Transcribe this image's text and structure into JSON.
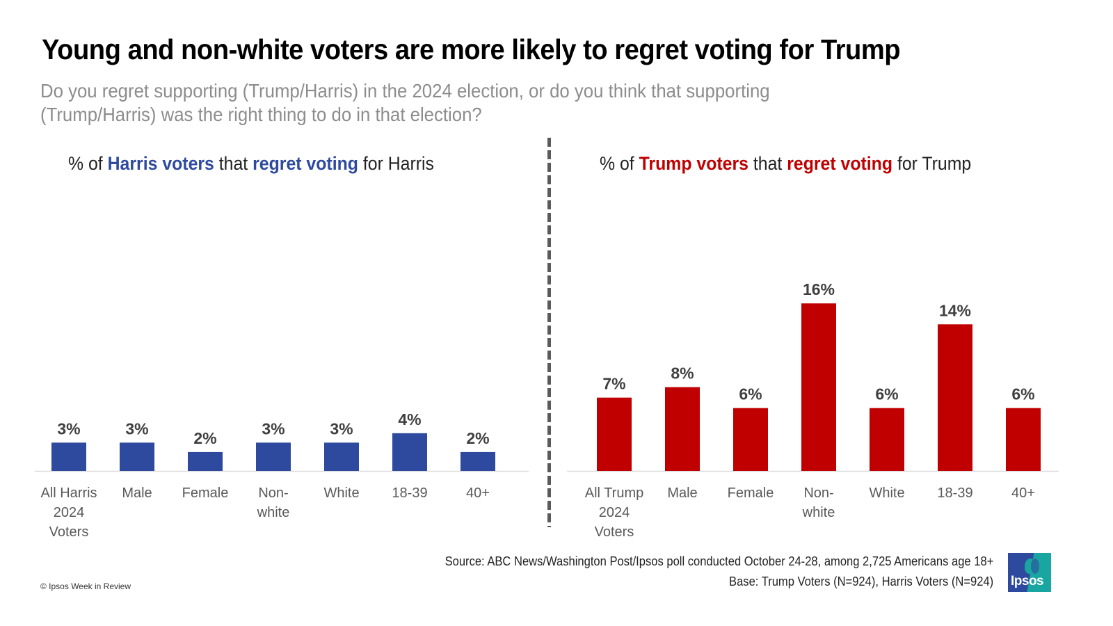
{
  "header": {
    "title": "Young and non-white voters are more likely to regret voting for Trump",
    "subtitle": "Do you regret supporting (Trump/Harris) in the 2024 election, or do  you think that supporting (Trump/Harris) was the right thing to do in that election?"
  },
  "panels": {
    "harris": {
      "prefix": "% of ",
      "group": "Harris voters",
      "middle": " that ",
      "emphasis": "regret voting",
      "suffix": " for Harris",
      "color": "#2e4a9e"
    },
    "trump": {
      "prefix": "% of ",
      "group": "Trump voters",
      "middle": " that ",
      "emphasis": "regret voting",
      "suffix": " for Trump",
      "color": "#c00000"
    }
  },
  "chart_data": [
    {
      "type": "bar",
      "title": "% of Harris voters that regret voting for Harris",
      "categories": [
        [
          "All Harris",
          "2024",
          "Voters"
        ],
        [
          "Male"
        ],
        [
          "Female"
        ],
        [
          "Non-",
          "white"
        ],
        [
          "White"
        ],
        [
          "18-39"
        ],
        [
          "40+"
        ]
      ],
      "values": [
        3,
        3,
        2,
        3,
        3,
        4,
        2
      ],
      "labels": [
        "3%",
        "3%",
        "2%",
        "3%",
        "3%",
        "4%",
        "2%"
      ],
      "color": "#2e4a9e",
      "xlabel": "",
      "ylabel": "",
      "ylim": [
        0,
        16
      ],
      "grid": false,
      "legend": "none"
    },
    {
      "type": "bar",
      "title": "% of Trump voters that regret voting for Trump",
      "categories": [
        [
          "All Trump",
          "2024",
          "Voters"
        ],
        [
          "Male"
        ],
        [
          "Female"
        ],
        [
          "Non-",
          "white"
        ],
        [
          "White"
        ],
        [
          "18-39"
        ],
        [
          "40+"
        ]
      ],
      "values": [
        7,
        8,
        6,
        16,
        6,
        14,
        6
      ],
      "labels": [
        "7%",
        "8%",
        "6%",
        "16%",
        "6%",
        "14%",
        "6%"
      ],
      "color": "#c00000",
      "xlabel": "",
      "ylabel": "",
      "ylim": [
        0,
        16
      ],
      "grid": false,
      "legend": "none"
    }
  ],
  "footer": {
    "source": "Source: ABC News/Washington Post/Ipsos poll conducted October 24-28, among 2,725 Americans age 18+",
    "base": "Base:  Trump Voters (N=924), Harris Voters (N=924)",
    "copyright": "© Ipsos Week in Review",
    "logo_text": "Ipsos"
  }
}
